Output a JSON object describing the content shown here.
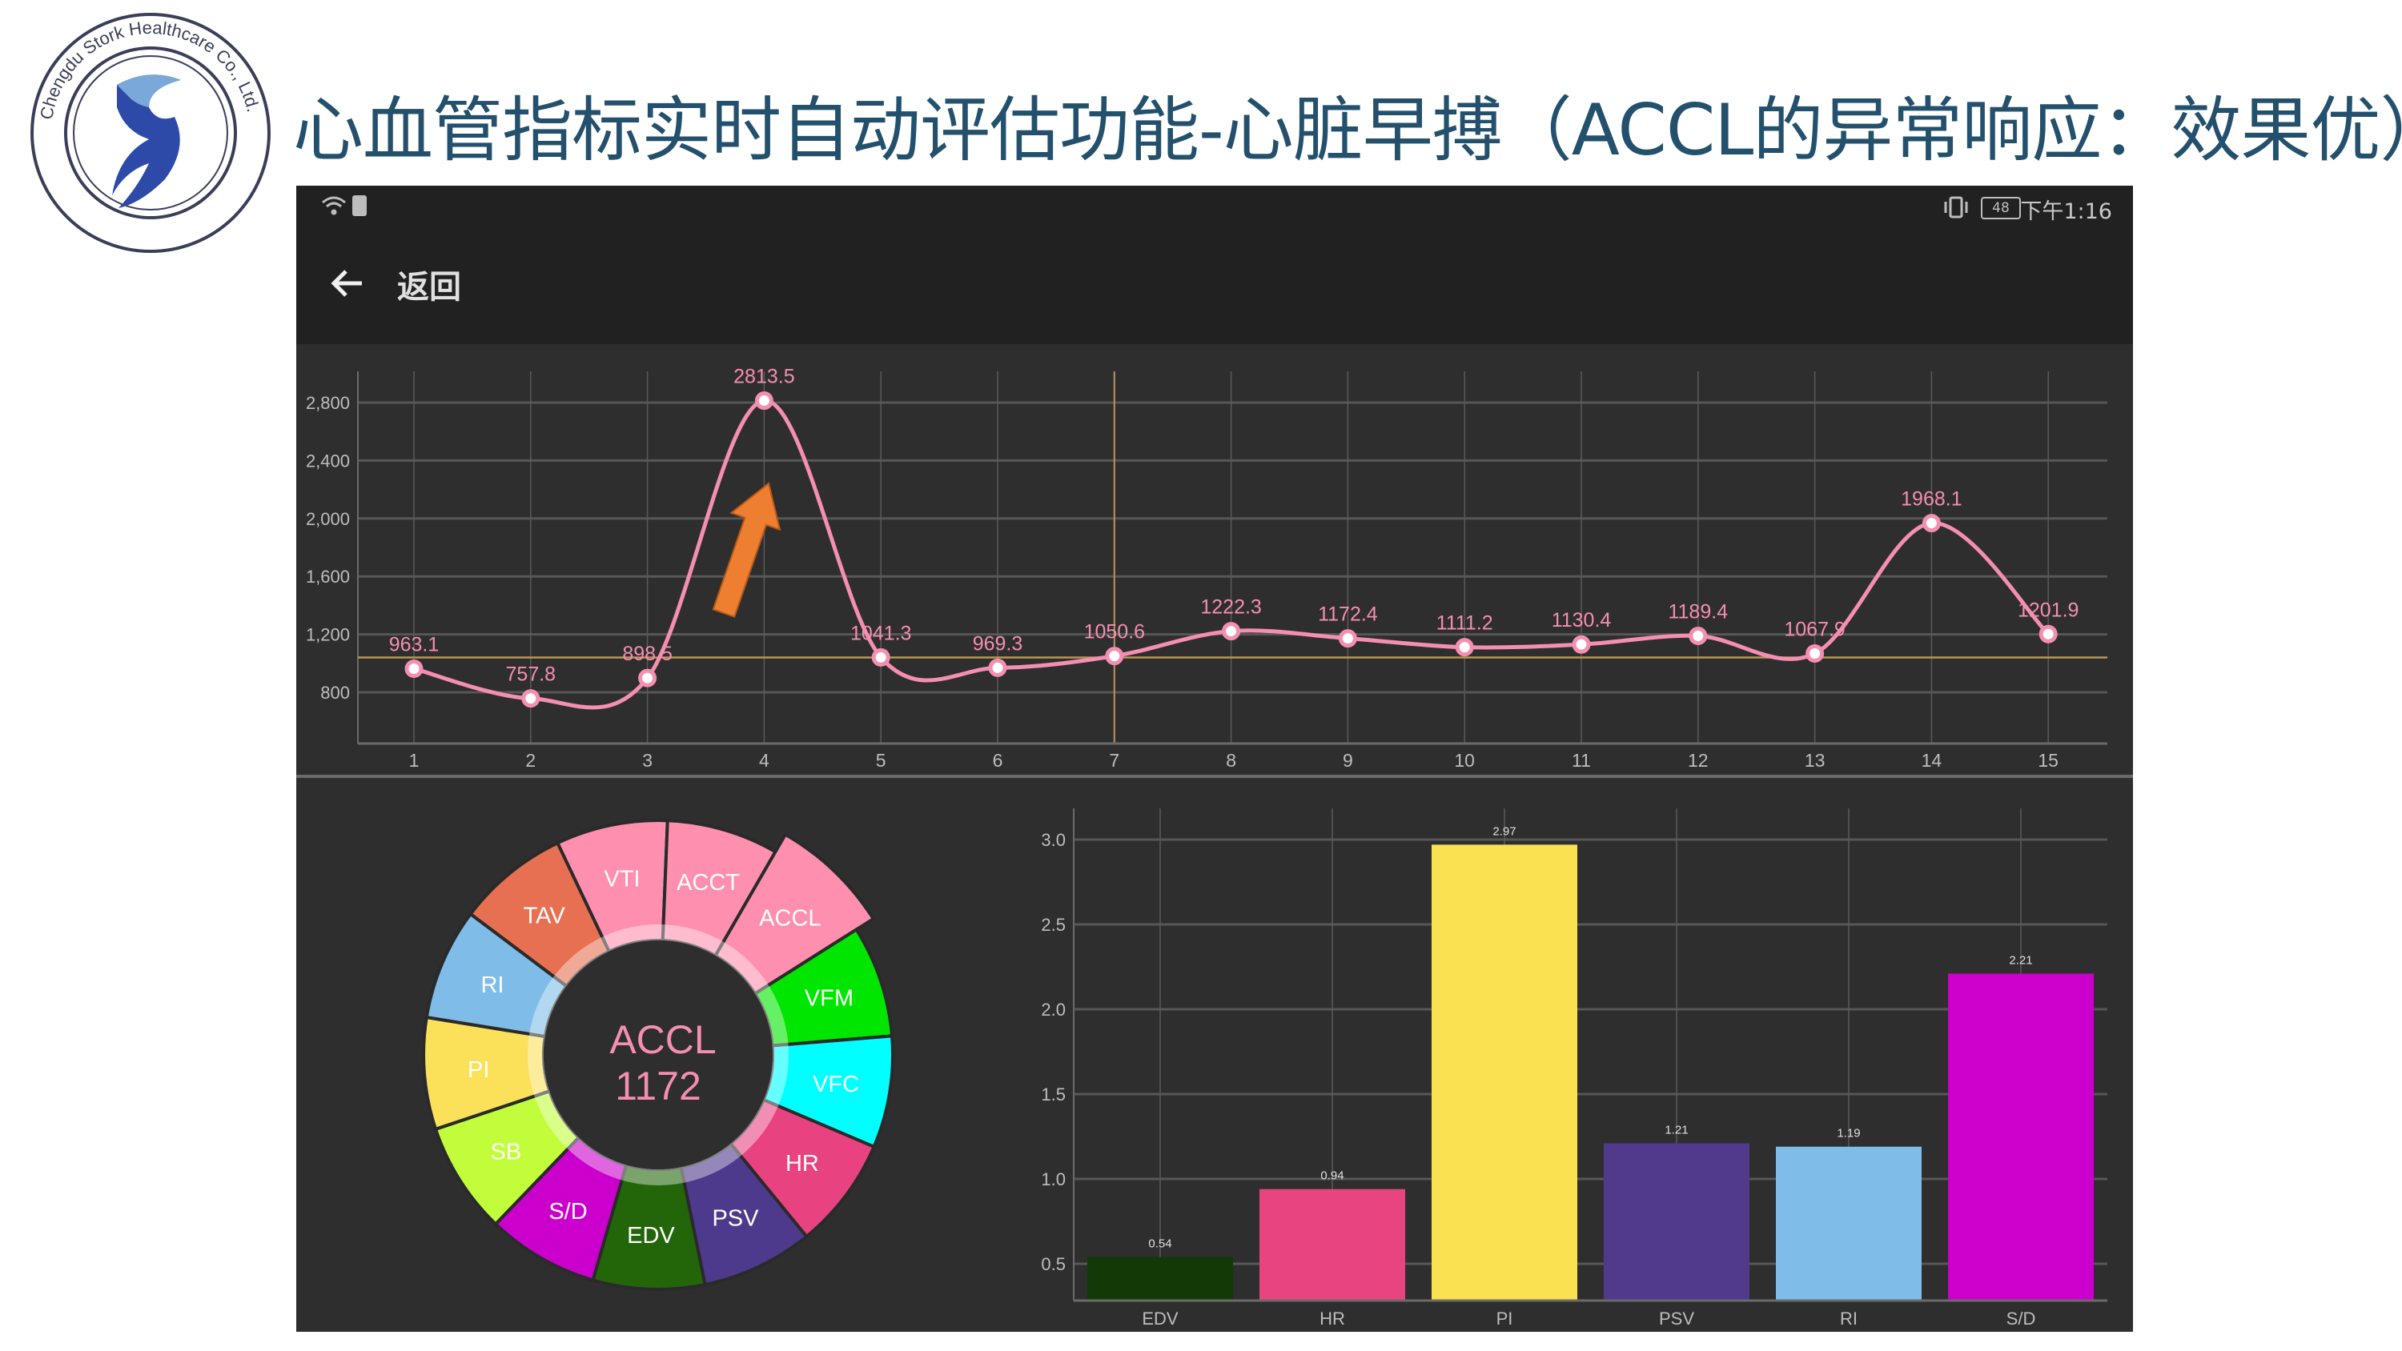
{
  "logo": {
    "text": "Chengdu Stork Healthcare Co., Ltd."
  },
  "title": "心血管指标实时自动评估功能-心脏早搏（ACCL的异常响应：效果优）",
  "status_bar": {
    "battery": "48",
    "time": "下午1:16",
    "icons": [
      "wifi-icon",
      "info-icon",
      "vibrate-icon",
      "battery-icon"
    ]
  },
  "toolbar": {
    "back_label": "返回",
    "back_icon": "arrow-left-icon"
  },
  "colors": {
    "line": "#f48fb1",
    "reference_line": "#b8955c",
    "arrow": "#ef7f30",
    "panel_bg": "#2e2e2e",
    "bar_bg": "#212121"
  },
  "chart_data": [
    {
      "type": "line",
      "x": [
        1,
        2,
        3,
        4,
        5,
        6,
        7,
        8,
        9,
        10,
        11,
        12,
        13,
        14,
        15
      ],
      "values": [
        963.1,
        757.8,
        898.5,
        2813.5,
        1041.3,
        969.3,
        1050.6,
        1222.3,
        1172.4,
        1111.2,
        1130.4,
        1189.4,
        1067.9,
        1968.1,
        1201.9
      ],
      "labels": [
        "963.1",
        "757.8",
        "898.5",
        "2813.5",
        "1041.3",
        "969.3",
        "1050.6",
        "1222.3",
        "1172.4",
        "1111.2",
        "1130.4",
        "1189.4",
        "1067.9",
        "1968.1",
        "1201.9"
      ],
      "x_ticks": [
        "1",
        "2",
        "3",
        "4",
        "5",
        "6",
        "7",
        "8",
        "9",
        "10",
        "11",
        "12",
        "13",
        "14",
        "15"
      ],
      "y_ticks": [
        800,
        1200,
        1600,
        2000,
        2400,
        2800
      ],
      "y_tick_labels": [
        "800",
        "1,200",
        "1,600",
        "2,000",
        "2,400",
        "2,800"
      ],
      "ylim": [
        446,
        3015
      ],
      "xlim": [
        0.5,
        15.5
      ],
      "reference_value": 1040,
      "highlight_x": 7,
      "grid": true,
      "annotation": "orange-up-arrow at x=4"
    },
    {
      "type": "bar",
      "categories": [
        "EDV",
        "HR",
        "PI",
        "PSV",
        "RI",
        "S/D"
      ],
      "values": [
        0.54,
        0.94,
        2.97,
        1.21,
        1.19,
        2.21
      ],
      "value_labels": [
        "0.54",
        "0.94",
        "2.97",
        "1.21",
        "1.19",
        "2.21"
      ],
      "colors": [
        "#133a06",
        "#e84580",
        "#fae152",
        "#4f3a8c",
        "#7fbde8",
        "#cc00cc"
      ],
      "y_ticks": [
        0.5,
        1.0,
        1.5,
        2.0,
        2.5,
        3.0
      ],
      "y_tick_labels": [
        "0.5",
        "1.0",
        "1.5",
        "2.0",
        "2.5",
        "3.0"
      ],
      "ylim": [
        0.28,
        3.18
      ],
      "grid": true
    }
  ],
  "wheel": {
    "selected_label": "ACCL",
    "selected_value": "1172",
    "center_color": "#f48fb1",
    "segments": [
      {
        "label": "VTI",
        "color": "#fe8fae"
      },
      {
        "label": "ACCT",
        "color": "#fe8fae"
      },
      {
        "label": "ACCL",
        "color": "#fe8fae",
        "selected": true
      },
      {
        "label": "VFM",
        "color": "#00e600"
      },
      {
        "label": "VFC",
        "color": "#00ffff"
      },
      {
        "label": "HR",
        "color": "#e84380"
      },
      {
        "label": "PSV",
        "color": "#4e3a8c"
      },
      {
        "label": "EDV",
        "color": "#23660a"
      },
      {
        "label": "S/D",
        "color": "#cc00cc"
      },
      {
        "label": "SB",
        "color": "#c2fd3c"
      },
      {
        "label": "PI",
        "color": "#fbe05a"
      },
      {
        "label": "RI",
        "color": "#7fbde8"
      },
      {
        "label": "TAV",
        "color": "#e87052"
      }
    ]
  }
}
